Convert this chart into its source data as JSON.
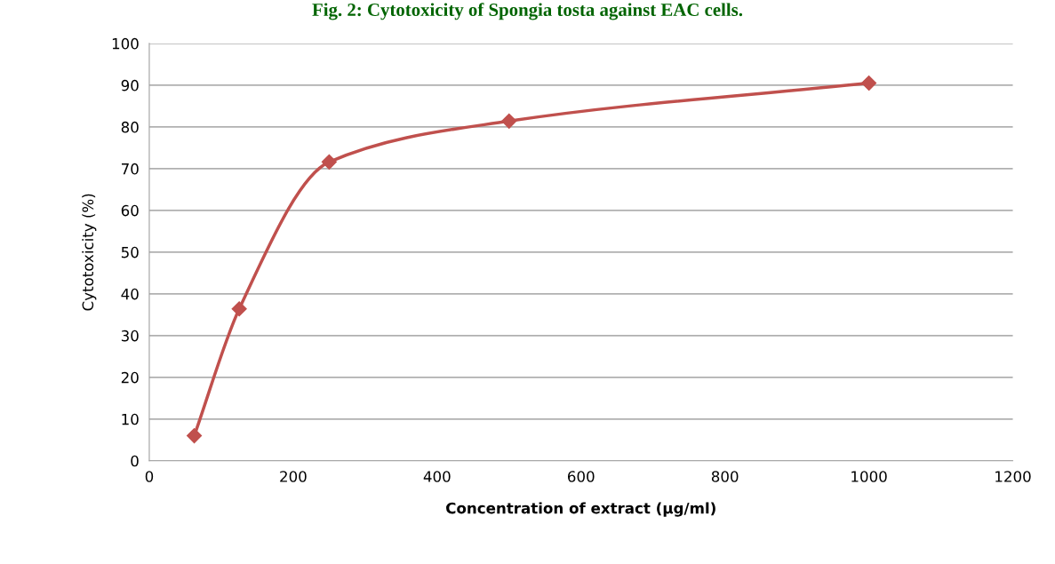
{
  "chart_data": {
    "type": "line",
    "title": "Fig. 2: Cytotoxicity of Spongia tosta against EAC cells.",
    "xlabel": "Concentration of extract (µg/ml)",
    "ylabel": "Cytotoxicity (%)",
    "x": [
      62.5,
      125,
      250,
      500,
      1000
    ],
    "series": [
      {
        "color": "#c0504d",
        "values": [
          6.0,
          36.4,
          71.6,
          81.4,
          90.5
        ]
      }
    ],
    "xlim": [
      0,
      1200
    ],
    "xticks": [
      0,
      200,
      400,
      600,
      800,
      1000,
      1200
    ],
    "ylim": [
      0,
      100
    ],
    "yticks": [
      0,
      10,
      20,
      30,
      40,
      50,
      60,
      70,
      80,
      90,
      100
    ],
    "grid": "y",
    "marker": "diamond",
    "line_style": "solid",
    "legend": false
  }
}
